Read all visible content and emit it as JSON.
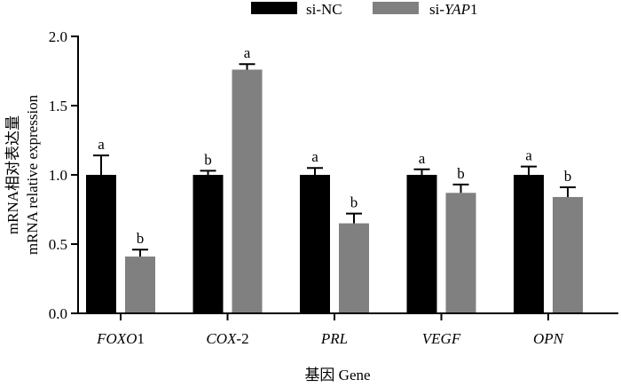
{
  "chart_data": {
    "type": "bar",
    "ylabel_lines": [
      "mRNA相对表达量",
      "mRNA relative expression"
    ],
    "xlabel": "基因  Gene",
    "ylim": [
      0,
      2.0
    ],
    "yticks": [
      "0.0",
      "0.5",
      "1.0",
      "1.5",
      "2.0"
    ],
    "ytick_values": [
      0.0,
      0.5,
      1.0,
      1.5,
      2.0
    ],
    "categories": [
      {
        "label": "FOXO",
        "suffix": "1"
      },
      {
        "label": "COX",
        "suffix": "-2"
      },
      {
        "label": "PRL",
        "suffix": ""
      },
      {
        "label": "VEGF",
        "suffix": ""
      },
      {
        "label": "OPN",
        "suffix": ""
      }
    ],
    "legend": [
      {
        "prefix": "si-NC",
        "italic": "",
        "suffix": "",
        "color": "#000000"
      },
      {
        "prefix": "si-",
        "italic": "YAP",
        "suffix": "1",
        "color": "#808080"
      }
    ],
    "series": [
      {
        "name": "si-NC",
        "color": "#000000",
        "values": [
          1.0,
          1.0,
          1.0,
          1.0,
          1.0
        ],
        "errors": [
          0.14,
          0.03,
          0.05,
          0.04,
          0.06
        ],
        "labels": [
          "a",
          "b",
          "a",
          "a",
          "a"
        ]
      },
      {
        "name": "si-YAP1",
        "color": "#808080",
        "values": [
          0.41,
          1.76,
          0.65,
          0.87,
          0.84
        ],
        "errors": [
          0.05,
          0.04,
          0.07,
          0.06,
          0.07
        ],
        "labels": [
          "b",
          "a",
          "b",
          "b",
          "b"
        ]
      }
    ]
  }
}
